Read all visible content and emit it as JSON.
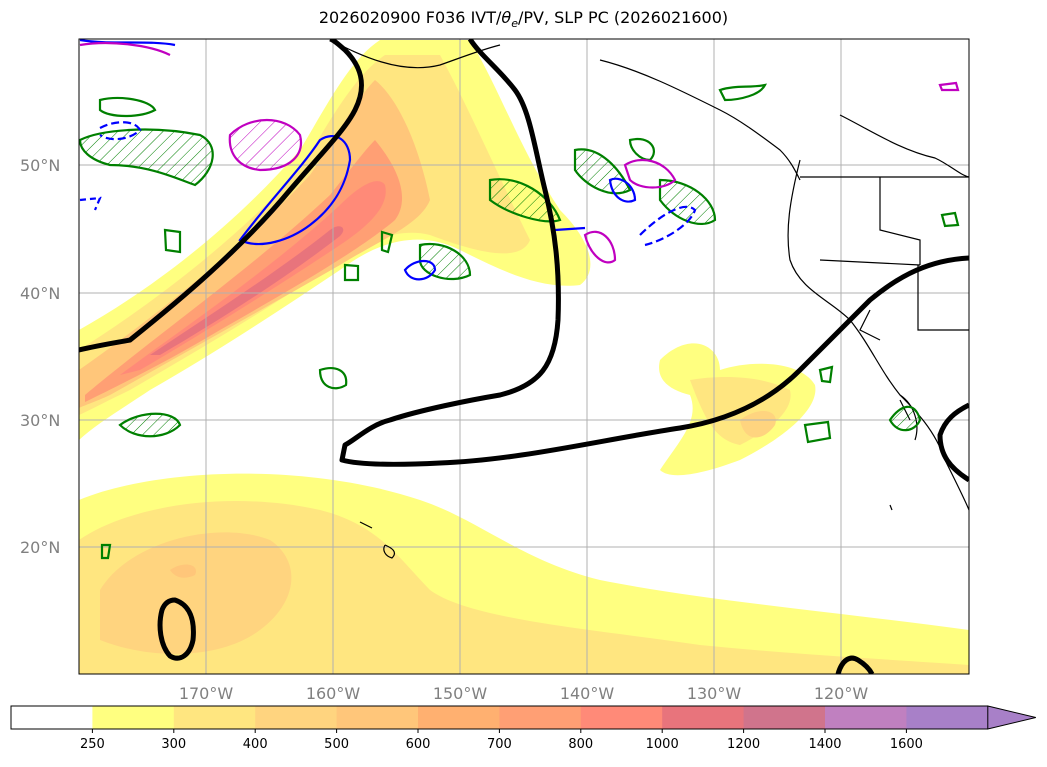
{
  "title": "2026020900 F036 IVT/θe/PV, SLP PC (2026021600)",
  "title_parts": {
    "prefix": "2026020900 F036 IVT/",
    "theta": "θ",
    "theta_sub": "e",
    "suffix": "/PV, SLP PC (2026021600)"
  },
  "map": {
    "lat_labels": [
      "50°N",
      "40°N",
      "30°N",
      "20°N"
    ],
    "lon_labels": [
      "170°W",
      "160°W",
      "150°W",
      "140°W",
      "130°W",
      "120°W"
    ]
  },
  "colorbar": {
    "levels": [
      "250",
      "300",
      "400",
      "500",
      "600",
      "700",
      "800",
      "1000",
      "1200",
      "1400",
      "1600"
    ],
    "colors": [
      "#ffffff",
      "#ffff80",
      "#ffe680",
      "#ffd47f",
      "#ffc67a",
      "#ffb070",
      "#ff9f74",
      "#ff8a78",
      "#e8747c",
      "#d0748c",
      "#c080c0",
      "#a880c8"
    ]
  },
  "colors": {
    "slp_contour": "#000000",
    "pv_contour_green": "#008000",
    "pv_contour_blue": "#0000ff",
    "pv_contour_magenta": "#c000c0",
    "grid": "#b0b0b0"
  }
}
